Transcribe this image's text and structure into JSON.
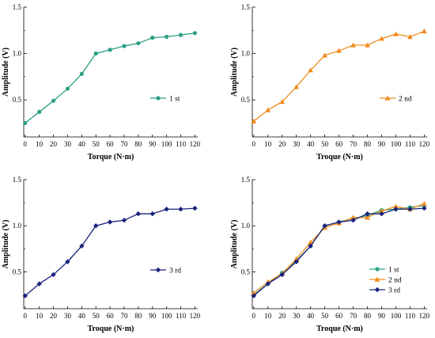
{
  "chart_data": [
    {
      "type": "line",
      "xlabel": "Torque (N·m)",
      "ylabel": "Amplitude (V)",
      "xlim": [
        -1,
        122
      ],
      "ylim": [
        0.1,
        1.5
      ],
      "xticks": [
        "0",
        "10",
        "20",
        "30",
        "40",
        "50",
        "60",
        "70",
        "80",
        "90",
        "100",
        "110",
        "120"
      ],
      "yticks": [
        "0.5",
        "1.0",
        "1.5"
      ],
      "x": [
        0,
        10,
        20,
        30,
        40,
        50,
        60,
        70,
        80,
        90,
        100,
        110,
        120
      ],
      "legend_position": "right",
      "series": [
        {
          "name": "1 st",
          "color": "#2aa085",
          "marker": "circle",
          "values": [
            0.25,
            0.37,
            0.49,
            0.62,
            0.78,
            1.0,
            1.04,
            1.08,
            1.11,
            1.17,
            1.18,
            1.2,
            1.22
          ]
        }
      ]
    },
    {
      "type": "line",
      "xlabel": "Troque (N·m)",
      "ylabel": "Amplitude (V)",
      "xlim": [
        -1,
        122
      ],
      "ylim": [
        0.1,
        1.5
      ],
      "xticks": [
        "0",
        "10",
        "20",
        "30",
        "40",
        "50",
        "60",
        "70",
        "80",
        "90",
        "100",
        "110",
        "120"
      ],
      "yticks": [
        "0.5",
        "1.0",
        "1.5"
      ],
      "x": [
        0,
        10,
        20,
        30,
        40,
        50,
        60,
        70,
        80,
        90,
        100,
        110,
        120
      ],
      "legend_position": "right",
      "series": [
        {
          "name": "2 nd",
          "color": "#f08c1e",
          "marker": "triangle",
          "values": [
            0.27,
            0.39,
            0.48,
            0.64,
            0.82,
            0.98,
            1.03,
            1.09,
            1.09,
            1.16,
            1.21,
            1.18,
            1.24
          ]
        }
      ]
    },
    {
      "type": "line",
      "xlabel": "Troque (N·m)",
      "ylabel": "Amplitude (V)",
      "xlim": [
        -1,
        122
      ],
      "ylim": [
        0.1,
        1.5
      ],
      "xticks": [
        "0",
        "10",
        "20",
        "30",
        "40",
        "50",
        "60",
        "70",
        "80",
        "90",
        "100",
        "110",
        "120"
      ],
      "yticks": [
        "0.5",
        "1.0",
        "1.5"
      ],
      "x": [
        0,
        10,
        20,
        30,
        40,
        50,
        60,
        70,
        80,
        90,
        100,
        110,
        120
      ],
      "legend_position": "right",
      "series": [
        {
          "name": "3 rd",
          "color": "#1a237e",
          "marker": "diamond",
          "values": [
            0.24,
            0.37,
            0.47,
            0.61,
            0.78,
            1.0,
            1.04,
            1.06,
            1.13,
            1.13,
            1.18,
            1.18,
            1.19
          ]
        }
      ]
    },
    {
      "type": "line",
      "xlabel": "Troque (N·m)",
      "ylabel": "Amplitude (V)",
      "xlim": [
        -1,
        122
      ],
      "ylim": [
        0.1,
        1.5
      ],
      "xticks": [
        "0",
        "10",
        "20",
        "30",
        "40",
        "50",
        "60",
        "70",
        "80",
        "90",
        "100",
        "110",
        "120"
      ],
      "yticks": [
        "0.5",
        "1.0",
        "1.5"
      ],
      "x": [
        0,
        10,
        20,
        30,
        40,
        50,
        60,
        70,
        80,
        90,
        100,
        110,
        120
      ],
      "legend_position": "bottom-right",
      "series": [
        {
          "name": "1 st",
          "color": "#2aa085",
          "marker": "circle",
          "values": [
            0.25,
            0.37,
            0.49,
            0.62,
            0.78,
            1.0,
            1.04,
            1.08,
            1.11,
            1.17,
            1.18,
            1.2,
            1.22
          ]
        },
        {
          "name": "2 nd",
          "color": "#f08c1e",
          "marker": "triangle",
          "values": [
            0.27,
            0.39,
            0.48,
            0.64,
            0.82,
            0.98,
            1.03,
            1.09,
            1.09,
            1.16,
            1.21,
            1.18,
            1.24
          ]
        },
        {
          "name": "3 rd",
          "color": "#1a237e",
          "marker": "diamond",
          "values": [
            0.24,
            0.37,
            0.47,
            0.61,
            0.78,
            1.0,
            1.04,
            1.06,
            1.13,
            1.13,
            1.18,
            1.18,
            1.19
          ]
        }
      ]
    }
  ]
}
